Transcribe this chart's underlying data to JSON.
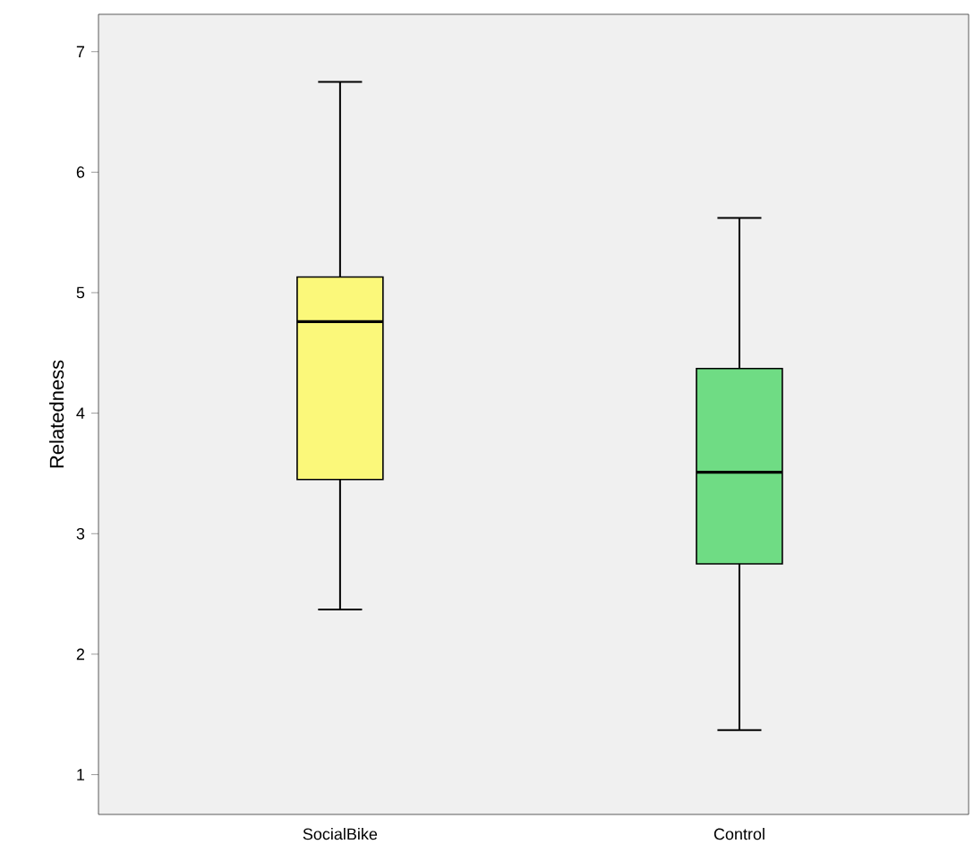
{
  "chart_data": {
    "type": "box",
    "ylabel": "Relatedness",
    "categories": [
      "SocialBike",
      "Control"
    ],
    "colors": [
      "#fbf87a",
      "#6fdc84"
    ],
    "boxes": [
      {
        "low": 2.37,
        "q1": 3.45,
        "median": 4.76,
        "q3": 5.13,
        "high": 6.75
      },
      {
        "low": 1.37,
        "q1": 2.75,
        "median": 3.51,
        "q3": 4.37,
        "high": 5.62
      }
    ],
    "ylim": [
      0.67,
      7.31
    ],
    "yticks": [
      1,
      2,
      3,
      4,
      5,
      6,
      7
    ],
    "grid": false
  }
}
